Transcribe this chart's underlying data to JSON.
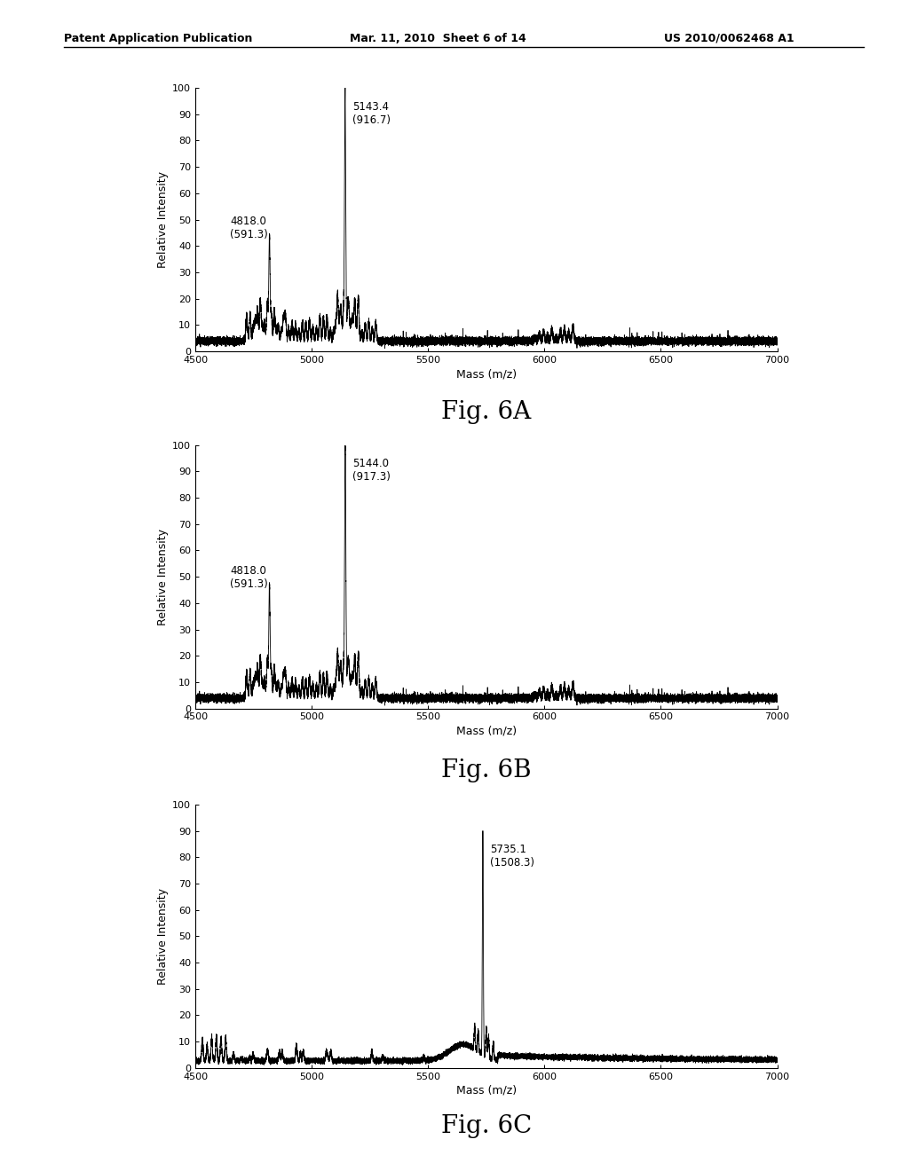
{
  "header_left": "Patent Application Publication",
  "header_mid": "Mar. 11, 2010  Sheet 6 of 14",
  "header_right": "US 2010/0062468 A1",
  "panels": [
    {
      "label": "Fig. 6A",
      "xlabel": "Mass (m/z)",
      "ylabel": "Relative Intensity",
      "xlim": [
        4500,
        7000
      ],
      "ylim": [
        0,
        100
      ],
      "yticks": [
        0,
        10,
        20,
        30,
        40,
        50,
        60,
        70,
        80,
        90,
        100
      ],
      "xticks": [
        4500,
        5000,
        5500,
        6000,
        6500,
        7000
      ],
      "main_peak_x": 5143.4,
      "main_peak_y": 100,
      "main_peak_label": "5143.4\n(916.7)",
      "second_peak_x": 4818.0,
      "second_peak_y": 40,
      "second_peak_label": "4818.0\n(591.3)",
      "panel_type": "6A"
    },
    {
      "label": "Fig. 6B",
      "xlabel": "Mass (m/z)",
      "ylabel": "Relative Intensity",
      "xlim": [
        4500,
        7000
      ],
      "ylim": [
        0,
        100
      ],
      "yticks": [
        0,
        10,
        20,
        30,
        40,
        50,
        60,
        70,
        80,
        90,
        100
      ],
      "xticks": [
        4500,
        5000,
        5500,
        6000,
        6500,
        7000
      ],
      "main_peak_x": 5144.0,
      "main_peak_y": 100,
      "main_peak_label": "5144.0\n(917.3)",
      "second_peak_x": 4818.0,
      "second_peak_y": 43,
      "second_peak_label": "4818.0\n(591.3)",
      "panel_type": "6B"
    },
    {
      "label": "Fig. 6C",
      "xlabel": "Mass (m/z)",
      "ylabel": "Relative Intensity",
      "xlim": [
        4500,
        7000
      ],
      "ylim": [
        0,
        100
      ],
      "yticks": [
        0,
        10,
        20,
        30,
        40,
        50,
        60,
        70,
        80,
        90,
        100
      ],
      "xticks": [
        4500,
        5000,
        5500,
        6000,
        6500,
        7000
      ],
      "main_peak_x": 5735.1,
      "main_peak_y": 90,
      "main_peak_label": "5735.1\n(1508.3)",
      "second_peak_x": null,
      "second_peak_y": null,
      "second_peak_label": null,
      "panel_type": "6C"
    }
  ],
  "background_color": "#ffffff",
  "line_color": "#000000",
  "fig_label_fontsize": 20,
  "axis_label_fontsize": 9,
  "tick_fontsize": 8,
  "annotation_fontsize": 8.5
}
